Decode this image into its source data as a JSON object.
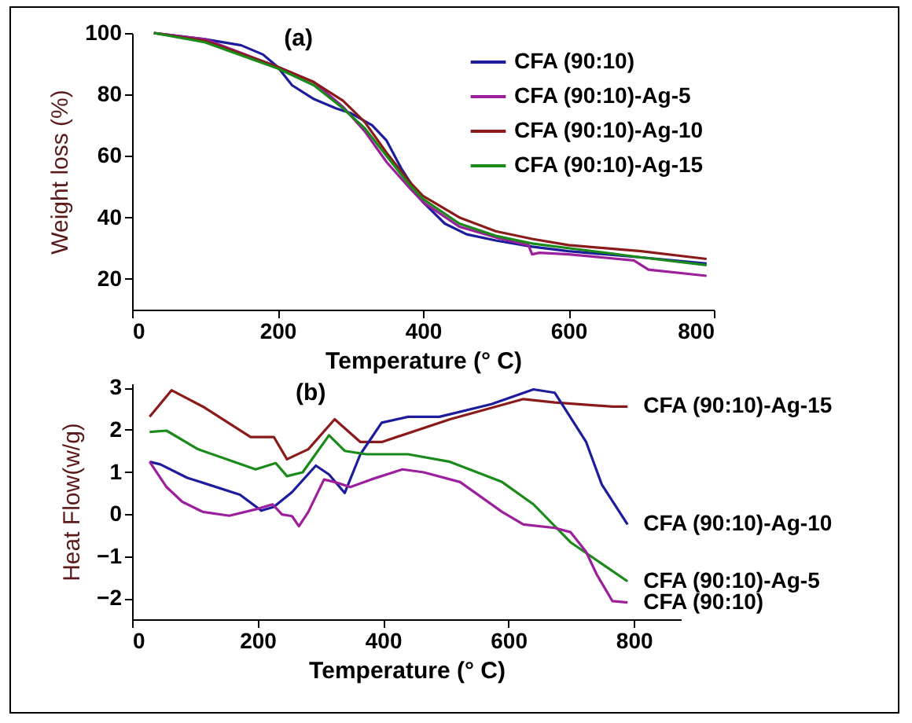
{
  "chart_data": [
    {
      "type": "line",
      "title": "(a)",
      "xlabel": "Temperature (° C)",
      "ylabel": "Weight loss (%)",
      "xlim": [
        0,
        800
      ],
      "xticks": [
        0,
        200,
        400,
        600,
        800
      ],
      "ylim": [
        10,
        100
      ],
      "yticks": [
        20,
        40,
        60,
        80,
        100
      ],
      "legend": "top right",
      "series": [
        {
          "name": "CFA (90:10)",
          "color": "#1c1c9c",
          "x": [
            30,
            100,
            150,
            180,
            200,
            220,
            250,
            280,
            300,
            330,
            350,
            370,
            400,
            430,
            460,
            500,
            550,
            600,
            700,
            790
          ],
          "values": [
            100,
            98,
            96,
            93,
            89,
            83,
            78.5,
            75.5,
            74,
            70,
            65,
            56,
            45,
            38,
            34.5,
            32.5,
            30.5,
            29,
            27,
            25
          ]
        },
        {
          "name": "CFA (90:10)-Ag-5",
          "color": "#9c1f9c",
          "x": [
            30,
            100,
            200,
            250,
            290,
            320,
            350,
            380,
            400,
            450,
            500,
            545,
            550,
            560,
            600,
            690,
            710,
            790
          ],
          "values": [
            100,
            98,
            89,
            84,
            76,
            68,
            58,
            50,
            45,
            37,
            33.5,
            31,
            28,
            28.5,
            28,
            26,
            23,
            21
          ]
        },
        {
          "name": "CFA (90:10)-Ag-10",
          "color": "#8b1a1a",
          "x": [
            30,
            100,
            200,
            250,
            290,
            320,
            350,
            380,
            400,
            450,
            500,
            550,
            600,
            700,
            790
          ],
          "values": [
            100,
            97.5,
            89,
            84,
            78,
            71,
            61,
            52,
            47,
            40,
            35.5,
            33,
            31,
            29,
            26.5
          ]
        },
        {
          "name": "CFA (90:10)-Ag-15",
          "color": "#1a8a1a",
          "x": [
            30,
            100,
            200,
            250,
            290,
            320,
            350,
            380,
            400,
            450,
            500,
            550,
            600,
            700,
            790
          ],
          "values": [
            100,
            97,
            88.5,
            83,
            75.5,
            69,
            60,
            51,
            46,
            38,
            34,
            31.5,
            30,
            27,
            24.5
          ]
        }
      ]
    },
    {
      "type": "line",
      "title": "(b)",
      "xlabel": "Temperature (° C)",
      "ylabel": "Heat Flow(w/g)",
      "xlim": [
        0,
        875
      ],
      "xticks": [
        0,
        200,
        400,
        600,
        800
      ],
      "ylim": [
        -2.5,
        3.1
      ],
      "yticks": [
        -2,
        -1,
        0,
        1,
        2,
        3
      ],
      "series": [
        {
          "name": "CFA (90:10)-Ag-15",
          "color": "#8b1a1a",
          "x": [
            28,
            63,
            113,
            189,
            226,
            247,
            281,
            323,
            364,
            398,
            507,
            624,
            674,
            766,
            790
          ],
          "values": [
            2.31,
            2.94,
            2.55,
            1.83,
            1.83,
            1.3,
            1.54,
            2.25,
            1.71,
            1.71,
            2.25,
            2.73,
            2.65,
            2.55,
            2.55
          ]
        },
        {
          "name": "CFA (90:10)-Ag-10",
          "color": "#1c1c9c",
          "x": [
            28,
            45,
            88,
            172,
            206,
            226,
            255,
            293,
            314,
            339,
            364,
            398,
            440,
            490,
            573,
            640,
            674,
            724,
            749,
            790
          ],
          "values": [
            1.24,
            1.18,
            0.86,
            0.46,
            0.08,
            0.17,
            0.52,
            1.15,
            0.94,
            0.5,
            1.42,
            2.17,
            2.31,
            2.31,
            2.61,
            2.96,
            2.88,
            1.71,
            0.7,
            -0.25
          ]
        },
        {
          "name": "CFA (90:10)-Ag-5",
          "color": "#1a8a1a",
          "x": [
            28,
            55,
            105,
            197,
            229,
            247,
            272,
            314,
            339,
            373,
            440,
            507,
            590,
            640,
            699,
            790
          ],
          "values": [
            1.95,
            1.98,
            1.54,
            1.06,
            1.21,
            0.9,
            0.99,
            1.87,
            1.5,
            1.42,
            1.42,
            1.24,
            0.76,
            0.23,
            -0.67,
            -1.6
          ]
        },
        {
          "name": "CFA (90:10)",
          "color": "#9c1f9c",
          "x": [
            28,
            55,
            80,
            113,
            155,
            197,
            224,
            239,
            255,
            266,
            281,
            306,
            323,
            348,
            381,
            431,
            465,
            523,
            590,
            624,
            674,
            699,
            724,
            741,
            766,
            790
          ],
          "values": [
            1.24,
            0.64,
            0.29,
            0.05,
            -0.04,
            0.11,
            0.23,
            -0.01,
            -0.05,
            -0.29,
            0.05,
            0.82,
            0.76,
            0.64,
            0.82,
            1.06,
            0.99,
            0.76,
            0.05,
            -0.25,
            -0.33,
            -0.43,
            -0.9,
            -1.44,
            -2.07,
            -2.1
          ]
        }
      ]
    }
  ]
}
